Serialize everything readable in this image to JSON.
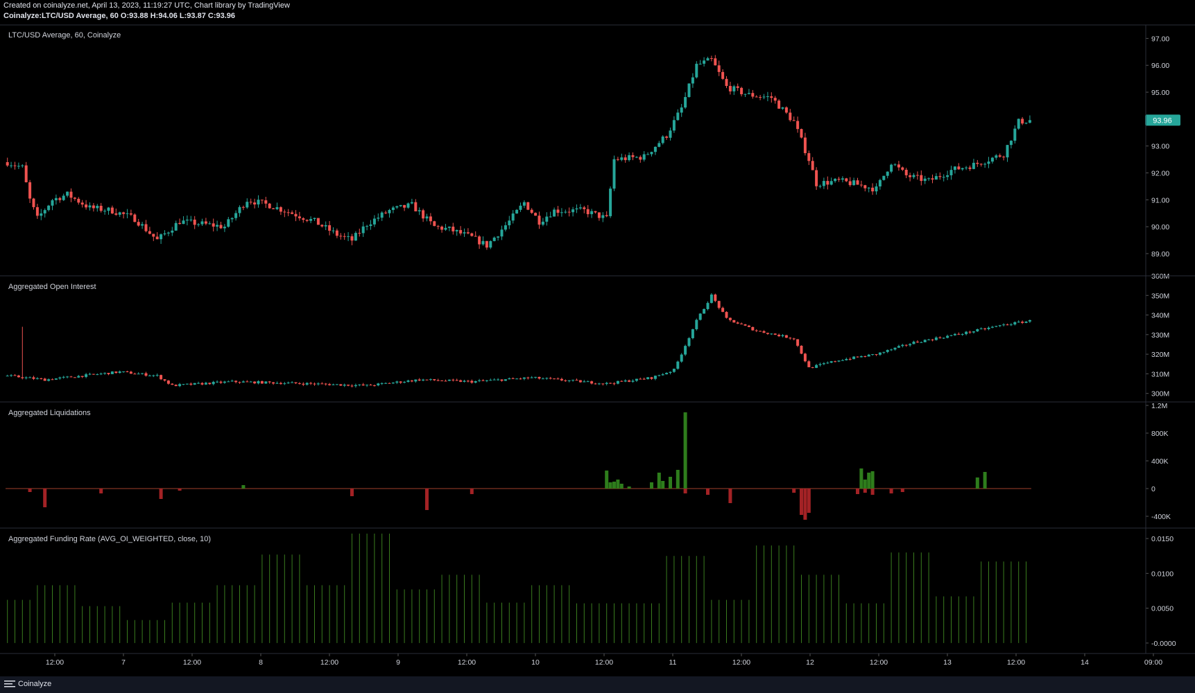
{
  "header": {
    "line1": "Created on coinalyze.net, April 13, 2023, 11:19:27 UTC, Chart library by TradingView",
    "line2": "Coinalyze:LTC/USD Average, 60 O:93.88 H:94.06 L:93.87 C:93.96"
  },
  "footer": {
    "brand": "Coinalyze"
  },
  "colors": {
    "up": "#26a69a",
    "down": "#ef5350",
    "liq_long": "#2e7d1c",
    "liq_short": "#a32225",
    "funding": "#3a7d1e",
    "price_tag_bg": "#26a69a"
  },
  "x_axis": {
    "labels": [
      "12:00",
      "7",
      "12:00",
      "8",
      "12:00",
      "9",
      "12:00",
      "10",
      "12:00",
      "11",
      "12:00",
      "12",
      "12:00",
      "13",
      "12:00",
      "14",
      "09:00"
    ]
  },
  "chart_data": [
    {
      "type": "candlestick",
      "title": "LTC/USD Average, 60, Coinalyze",
      "ylim": [
        88.2,
        97.5
      ],
      "yticks": [
        "97.00",
        "96.00",
        "95.00",
        "94.00",
        "93.00",
        "92.00",
        "91.00",
        "90.00",
        "89.00"
      ],
      "last_price": "93.96",
      "anchors": [
        [
          0,
          92.4
        ],
        [
          4,
          92.2
        ],
        [
          6,
          91.0
        ],
        [
          8,
          90.3
        ],
        [
          12,
          91.0
        ],
        [
          16,
          91.2
        ],
        [
          22,
          90.7
        ],
        [
          28,
          90.6
        ],
        [
          34,
          90.3
        ],
        [
          40,
          89.5
        ],
        [
          46,
          90.2
        ],
        [
          52,
          90.1
        ],
        [
          58,
          90.0
        ],
        [
          64,
          91.0
        ],
        [
          70,
          90.8
        ],
        [
          76,
          90.5
        ],
        [
          82,
          90.2
        ],
        [
          88,
          89.7
        ],
        [
          92,
          89.5
        ],
        [
          96,
          90.1
        ],
        [
          102,
          90.6
        ],
        [
          108,
          90.8
        ],
        [
          114,
          90.0
        ],
        [
          118,
          89.9
        ],
        [
          124,
          89.6
        ],
        [
          128,
          89.3
        ],
        [
          134,
          90.2
        ],
        [
          138,
          90.9
        ],
        [
          142,
          90.2
        ],
        [
          146,
          90.6
        ],
        [
          154,
          90.6
        ],
        [
          160,
          90.3
        ],
        [
          162,
          92.5
        ],
        [
          170,
          92.6
        ],
        [
          176,
          93.4
        ],
        [
          180,
          94.4
        ],
        [
          184,
          96.0
        ],
        [
          188,
          96.2
        ],
        [
          192,
          95.2
        ],
        [
          198,
          94.9
        ],
        [
          204,
          94.8
        ],
        [
          210,
          93.9
        ],
        [
          214,
          92.5
        ],
        [
          216,
          91.6
        ],
        [
          222,
          91.7
        ],
        [
          226,
          91.6
        ],
        [
          232,
          91.4
        ],
        [
          236,
          92.4
        ],
        [
          240,
          91.9
        ],
        [
          246,
          91.7
        ],
        [
          252,
          92.1
        ],
        [
          258,
          92.3
        ],
        [
          262,
          92.5
        ],
        [
          266,
          92.7
        ],
        [
          270,
          93.9
        ],
        [
          273,
          93.96
        ]
      ]
    },
    {
      "type": "candlestick",
      "title": "Aggregated Open Interest",
      "ylim": [
        296,
        360
      ],
      "yticks": [
        "360M",
        "350M",
        "340M",
        "330M",
        "320M",
        "310M",
        "300M"
      ],
      "anchors": [
        [
          0,
          309
        ],
        [
          10,
          307
        ],
        [
          30,
          311
        ],
        [
          40,
          309
        ],
        [
          44,
          304
        ],
        [
          60,
          306
        ],
        [
          80,
          305
        ],
        [
          96,
          304
        ],
        [
          110,
          307
        ],
        [
          124,
          306
        ],
        [
          140,
          308
        ],
        [
          160,
          305
        ],
        [
          172,
          308
        ],
        [
          178,
          312
        ],
        [
          184,
          337
        ],
        [
          188,
          350
        ],
        [
          192,
          338
        ],
        [
          200,
          332
        ],
        [
          210,
          328
        ],
        [
          214,
          313
        ],
        [
          222,
          317
        ],
        [
          232,
          320
        ],
        [
          242,
          326
        ],
        [
          256,
          331
        ],
        [
          266,
          335
        ],
        [
          273,
          337
        ]
      ],
      "spike": {
        "index": 4,
        "high": 334
      }
    },
    {
      "type": "bar",
      "title": "Aggregated Liquidations",
      "ylim": [
        -560000,
        1250000
      ],
      "yticks": [
        {
          "label": "1.2M",
          "value": 1200000
        },
        {
          "label": "800K",
          "value": 800000
        },
        {
          "label": "400K",
          "value": 400000
        },
        {
          "label": "0",
          "value": 0
        },
        {
          "label": "-400K",
          "value": -400000
        }
      ],
      "positive": [
        [
          63,
          50000
        ],
        [
          160,
          260000
        ],
        [
          161,
          90000
        ],
        [
          162,
          100000
        ],
        [
          163,
          130000
        ],
        [
          164,
          70000
        ],
        [
          166,
          30000
        ],
        [
          172,
          90000
        ],
        [
          174,
          230000
        ],
        [
          175,
          110000
        ],
        [
          177,
          170000
        ],
        [
          179,
          270000
        ],
        [
          181,
          1100000
        ],
        [
          228,
          290000
        ],
        [
          229,
          130000
        ],
        [
          230,
          230000
        ],
        [
          231,
          250000
        ],
        [
          259,
          160000
        ],
        [
          261,
          240000
        ]
      ],
      "negative": [
        [
          6,
          -50000
        ],
        [
          10,
          -270000
        ],
        [
          25,
          -70000
        ],
        [
          41,
          -150000
        ],
        [
          46,
          -30000
        ],
        [
          92,
          -110000
        ],
        [
          112,
          -310000
        ],
        [
          124,
          -80000
        ],
        [
          181,
          -70000
        ],
        [
          187,
          -90000
        ],
        [
          193,
          -210000
        ],
        [
          210,
          -60000
        ],
        [
          212,
          -380000
        ],
        [
          213,
          -450000
        ],
        [
          214,
          -350000
        ],
        [
          227,
          -80000
        ],
        [
          229,
          -60000
        ],
        [
          231,
          -90000
        ],
        [
          236,
          -70000
        ],
        [
          239,
          -50000
        ]
      ]
    },
    {
      "type": "bar",
      "title": "Aggregated Funding Rate (AVG_OI_WEIGHTED, close, 10)",
      "ylim": [
        -0.0015,
        0.0165
      ],
      "yticks": [
        {
          "label": "0.0150",
          "value": 0.015
        },
        {
          "label": "0.0100",
          "value": 0.01
        },
        {
          "label": "0.0050",
          "value": 0.005
        },
        {
          "label": "-0.0000",
          "value": 0
        }
      ],
      "levels": [
        [
          0,
          0.0062
        ],
        [
          7,
          0.0083
        ],
        [
          18,
          0.0083
        ],
        [
          19,
          0.0053
        ],
        [
          31,
          0.0053
        ],
        [
          32,
          0.0033
        ],
        [
          43,
          0.0033
        ],
        [
          44,
          0.0058
        ],
        [
          55,
          0.0058
        ],
        [
          56,
          0.0083
        ],
        [
          66,
          0.0083
        ],
        [
          67,
          0.0127
        ],
        [
          79,
          0.0127
        ],
        [
          80,
          0.0083
        ],
        [
          91,
          0.0083
        ],
        [
          92,
          0.0157
        ],
        [
          103,
          0.0153
        ],
        [
          104,
          0.0077
        ],
        [
          115,
          0.0077
        ],
        [
          116,
          0.0098
        ],
        [
          127,
          0.0098
        ],
        [
          128,
          0.0058
        ],
        [
          139,
          0.0058
        ],
        [
          140,
          0.0083
        ],
        [
          151,
          0.0087
        ],
        [
          152,
          0.0057
        ],
        [
          175,
          0.0057
        ],
        [
          176,
          0.0125
        ],
        [
          187,
          0.0125
        ],
        [
          188,
          0.0062
        ],
        [
          199,
          0.0062
        ],
        [
          200,
          0.014
        ],
        [
          211,
          0.014
        ],
        [
          212,
          0.0098
        ],
        [
          223,
          0.0102
        ],
        [
          224,
          0.0057
        ],
        [
          235,
          0.0057
        ],
        [
          236,
          0.013
        ],
        [
          247,
          0.013
        ],
        [
          248,
          0.0067
        ],
        [
          259,
          0.0072
        ],
        [
          260,
          0.0117
        ],
        [
          265,
          0.0117
        ]
      ]
    }
  ]
}
